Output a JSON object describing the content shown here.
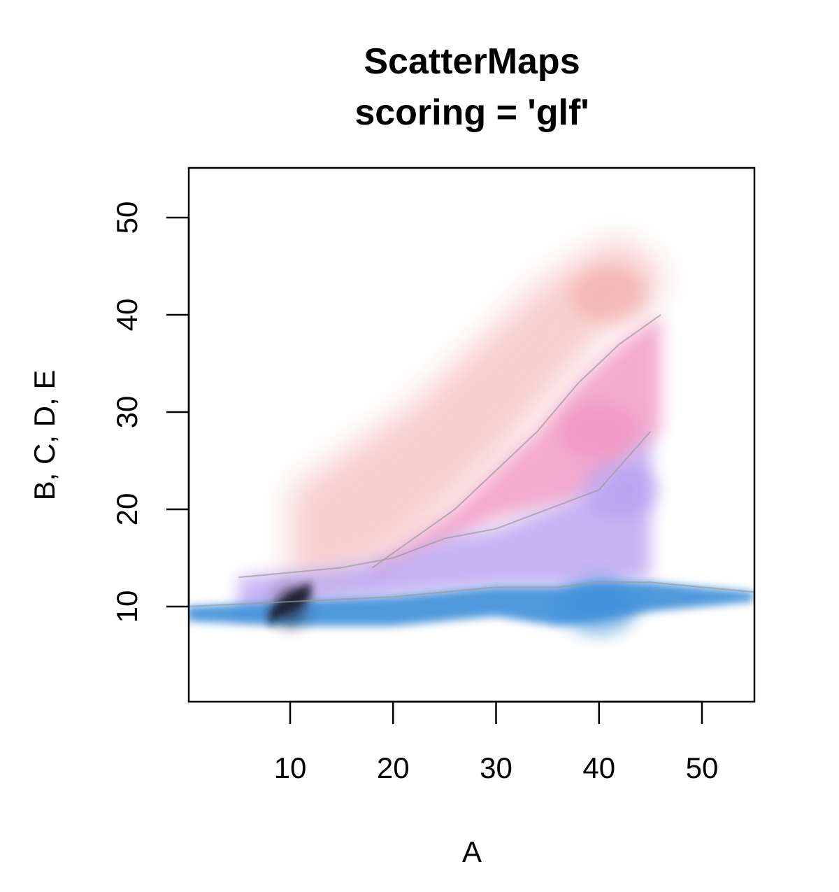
{
  "chart_data": {
    "type": "heatmap",
    "title": "ScatterMaps",
    "subtitle": "scoring = 'glf'",
    "xlabel": "A",
    "ylabel": "B, C, D, E",
    "xlim": [
      0,
      55
    ],
    "ylim": [
      0,
      55
    ],
    "x_ticks": [
      10,
      20,
      30,
      40,
      50
    ],
    "y_ticks": [
      10,
      20,
      30,
      40,
      50
    ],
    "grid": false,
    "series": [
      {
        "key": "B",
        "color": "#f2a8a8",
        "regions": [
          {
            "x": [
              10,
              14,
              18,
              22,
              26,
              30,
              34,
              38,
              42,
              46
            ],
            "y_low": [
              12,
              13,
              14,
              17,
              21,
              25,
              30,
              35,
              40,
              42
            ],
            "y_high": [
              22,
              25,
              28,
              31,
              35,
              39,
              43,
              46,
              48,
              45
            ]
          }
        ],
        "peak": {
          "x": 41,
          "y": 42
        }
      },
      {
        "key": "C",
        "color": "#f08fbf",
        "regions": [
          {
            "x": [
              18,
              22,
              26,
              30,
              34,
              38,
              42,
              46
            ],
            "y_low": [
              13,
              15,
              17,
              19,
              20,
              21,
              24,
              28
            ],
            "y_high": [
              14,
              17,
              20,
              24,
              28,
              33,
              37,
              40
            ]
          }
        ],
        "peak": {
          "x": 40,
          "y": 28
        }
      },
      {
        "key": "D",
        "color": "#b39bf0",
        "regions": [
          {
            "x": [
              5,
              10,
              15,
              20,
              25,
              30,
              35,
              40,
              45
            ],
            "y_low": [
              9,
              10,
              10.5,
              11,
              11.5,
              12,
              12,
              12,
              13
            ],
            "y_high": [
              13,
              13.5,
              14,
              15,
              17,
              18,
              20,
              22,
              28
            ]
          }
        ],
        "peak": {
          "x": 42,
          "y": 22
        }
      },
      {
        "key": "E",
        "color": "#3d8fd9",
        "regions": [
          {
            "x": [
              0,
              10,
              20,
              30,
              36,
              40,
              45,
              50,
              55
            ],
            "y_low": [
              8.5,
              8,
              8,
              9,
              8,
              8.5,
              9.5,
              10,
              10.5
            ],
            "y_high": [
              10,
              10.5,
              11,
              12,
              12,
              12.5,
              12.5,
              12,
              11.5
            ]
          }
        ],
        "peak": {
          "x": 40,
          "y": 10
        }
      },
      {
        "key": "overlap",
        "color": "#1a1a2a",
        "regions": [
          {
            "x": [
              8,
              9,
              10,
              11,
              12
            ],
            "y_low": [
              8,
              9,
              9.5,
              10,
              11
            ],
            "y_high": [
              9.5,
              10.5,
              11.5,
              12,
              12.5
            ]
          }
        ],
        "peak": {
          "x": 10,
          "y": 10
        }
      }
    ]
  }
}
